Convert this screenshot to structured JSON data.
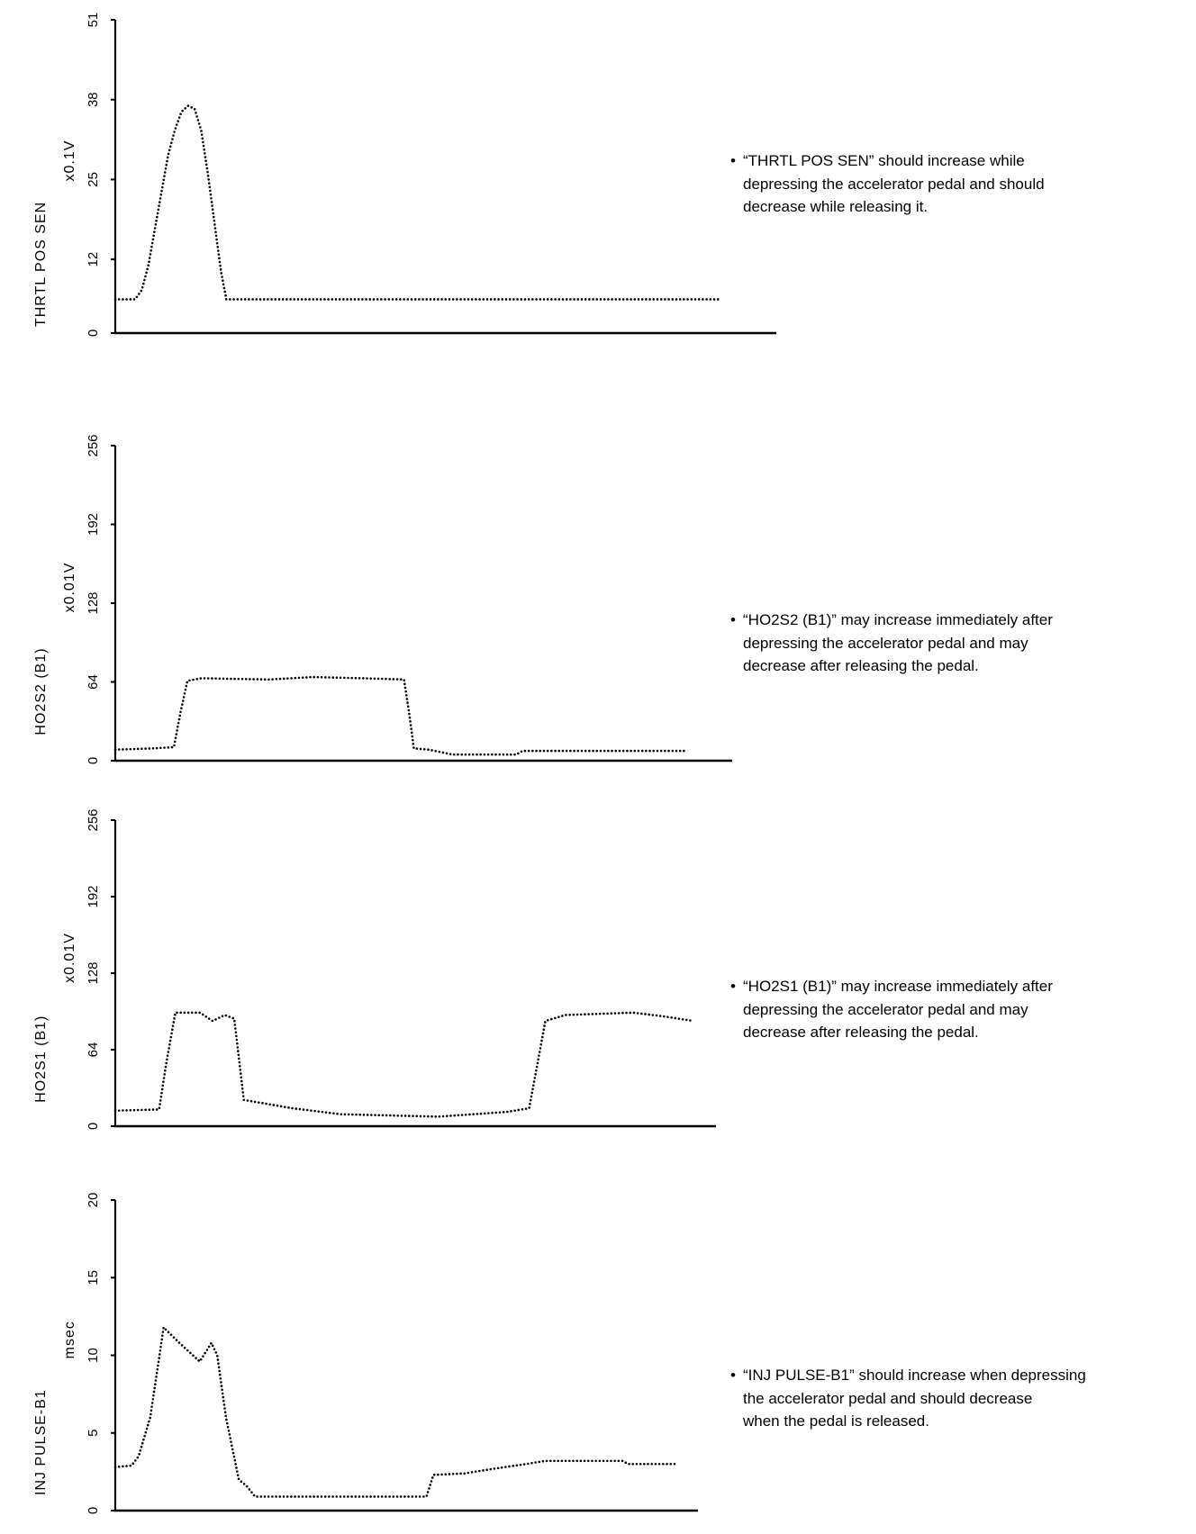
{
  "chart_data": [
    {
      "type": "line",
      "title": "",
      "ylabel": "THRTL POS SEN",
      "unit": "x0.1V",
      "xlabel": "",
      "yticks": [
        "0",
        "12",
        "25",
        "38",
        "51"
      ],
      "ylim": [
        0,
        51
      ],
      "xlim": [
        0,
        100
      ],
      "grid": false,
      "series": [
        {
          "name": "THRTL POS SEN",
          "points": [
            [
              0,
              5.5
            ],
            [
              3,
              5.5
            ],
            [
              4,
              7
            ],
            [
              5,
              11
            ],
            [
              6,
              17
            ],
            [
              7,
              23
            ],
            [
              8,
              29
            ],
            [
              9,
              33
            ],
            [
              10,
              36
            ],
            [
              11,
              37
            ],
            [
              12,
              36.5
            ],
            [
              13,
              33
            ],
            [
              14,
              26
            ],
            [
              15,
              18
            ],
            [
              16,
              10
            ],
            [
              16.8,
              5.5
            ],
            [
              91.3,
              5.5
            ]
          ]
        }
      ],
      "note": "“THRTL POS SEN” should increase while\ndepressing the accelerator pedal and should\ndecrease while releasing it."
    },
    {
      "type": "line",
      "title": "",
      "ylabel": "HO2S2 (B1)",
      "unit": "x0.01V",
      "xlabel": "",
      "yticks": [
        "0",
        "64",
        "128",
        "192",
        "256"
      ],
      "ylim": [
        0,
        256
      ],
      "xlim": [
        0,
        100
      ],
      "grid": false,
      "series": [
        {
          "name": "HO2S2 (B1)",
          "points": [
            [
              0,
              9
            ],
            [
              6,
              10
            ],
            [
              9.5,
              11
            ],
            [
              10.6,
              40
            ],
            [
              11.7,
              65
            ],
            [
              14,
              67
            ],
            [
              25,
              66
            ],
            [
              32,
              68
            ],
            [
              40,
              67
            ],
            [
              46.8,
              66
            ],
            [
              47.6,
              40
            ],
            [
              48.4,
              10
            ],
            [
              50.8,
              9
            ],
            [
              54.7,
              5
            ],
            [
              65,
              5
            ],
            [
              66,
              8
            ],
            [
              80,
              8
            ],
            [
              92.3,
              8
            ]
          ]
        }
      ],
      "note": "“HO2S2 (B1)” may increase immediately after\ndepressing the accelerator pedal and may\ndecrease after releasing the pedal."
    },
    {
      "type": "line",
      "title": "",
      "ylabel": "HO2S1 (B1)",
      "unit": "x0.01V",
      "xlabel": "",
      "yticks": [
        "0",
        "64",
        "128",
        "192",
        "256"
      ],
      "ylim": [
        0,
        256
      ],
      "xlim": [
        0,
        100
      ],
      "grid": false,
      "series": [
        {
          "name": "HO2S1 (B1)",
          "points": [
            [
              0,
              13
            ],
            [
              7.3,
              14
            ],
            [
              8.4,
              50
            ],
            [
              10,
              95
            ],
            [
              14.1,
              95
            ],
            [
              16.2,
              88
            ],
            [
              18.2,
              93
            ],
            [
              19.8,
              90
            ],
            [
              21.4,
              22
            ],
            [
              29.5,
              15
            ],
            [
              37.6,
              10
            ],
            [
              53.8,
              8
            ],
            [
              65.2,
              12
            ],
            [
              68.9,
              15
            ],
            [
              71.6,
              88
            ],
            [
              74.9,
              93
            ],
            [
              86.2,
              95
            ],
            [
              91.1,
              92
            ],
            [
              96.3,
              88
            ]
          ]
        }
      ],
      "note": "“HO2S1 (B1)” may increase immediately after\ndepressing the accelerator pedal and may\ndecrease after releasing the pedal."
    },
    {
      "type": "line",
      "title": "",
      "ylabel": "INJ PULSE-B1",
      "unit": "msec",
      "xlabel": "",
      "yticks": [
        "0",
        "5",
        "10",
        "15",
        "20"
      ],
      "ylim": [
        0,
        20
      ],
      "xlim": [
        0,
        100
      ],
      "grid": false,
      "series": [
        {
          "name": "INJ PULSE-B1",
          "points": [
            [
              0,
              2.8
            ],
            [
              2.8,
              2.9
            ],
            [
              4,
              3.5
            ],
            [
              6,
              6
            ],
            [
              8.3,
              11.8
            ],
            [
              11,
              10.8
            ],
            [
              14.5,
              9.6
            ],
            [
              16.5,
              10.8
            ],
            [
              17.5,
              10
            ],
            [
              19,
              6
            ],
            [
              21.2,
              2
            ],
            [
              22.5,
              1.6
            ],
            [
              24,
              0.9
            ],
            [
              53.4,
              0.9
            ],
            [
              54.6,
              2.3
            ],
            [
              60,
              2.4
            ],
            [
              65,
              2.7
            ],
            [
              70.5,
              3
            ],
            [
              73.8,
              3.2
            ],
            [
              87.1,
              3.2
            ],
            [
              88,
              3
            ],
            [
              96,
              3
            ]
          ]
        }
      ],
      "note": "“INJ PULSE-B1” should increase when depressing\nthe accelerator pedal and should decrease\nwhen the pedal is released."
    }
  ]
}
